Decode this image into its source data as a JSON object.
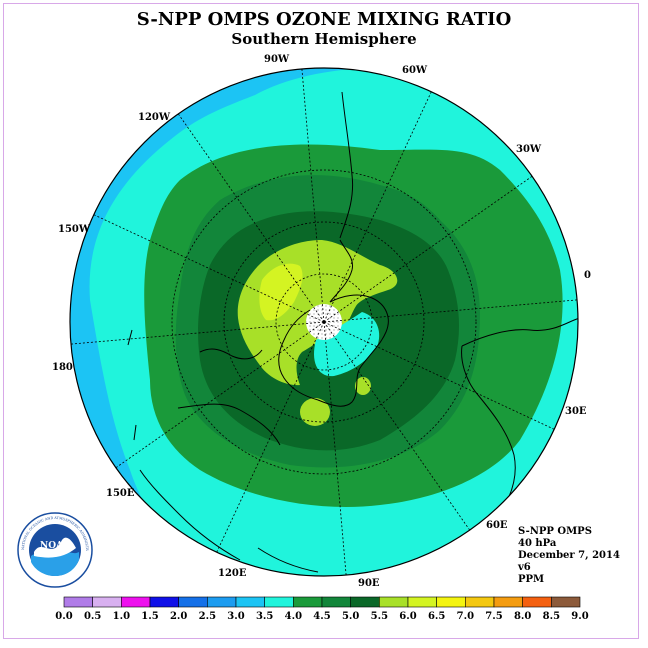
{
  "header": {
    "title": "S-NPP OMPS OZONE MIXING RATIO",
    "subtitle": "Southern Hemisphere"
  },
  "map": {
    "projection": "polar-stereographic-south",
    "longitude_labels": [
      "90W",
      "60W",
      "30W",
      "0",
      "30E",
      "60E",
      "90E",
      "120E",
      "150E",
      "180",
      "150W",
      "120W"
    ],
    "colors": {
      "band_3_0": "#1cc4f4",
      "band_3_5": "#20f4dc",
      "band_4_0": "#1a9a3a",
      "band_4_5": "#12863a",
      "band_5_0": "#0a6828",
      "band_5_5": "#a8e028",
      "band_6_0": "#d4f422",
      "pole": "#ffffff"
    }
  },
  "info": {
    "instrument": "S-NPP OMPS",
    "level": "40 hPa",
    "date": "December 7, 2014",
    "version": "v6",
    "units": "PPM"
  },
  "logo": {
    "text": "NOAA",
    "ring_text": "NATIONAL OCEANIC AND ATMOSPHERIC ADMINISTRATION · U.S. DEPARTMENT OF COMMERCE"
  },
  "colorbar": {
    "labels": [
      "0.0",
      "0.5",
      "1.0",
      "1.5",
      "2.0",
      "2.5",
      "3.0",
      "3.5",
      "4.0",
      "4.5",
      "5.0",
      "5.5",
      "6.0",
      "6.5",
      "7.0",
      "7.5",
      "8.0",
      "8.5",
      "9.0"
    ],
    "colors": [
      "#b07ce8",
      "#d8b0f0",
      "#ee10ee",
      "#1010e8",
      "#1470e8",
      "#1c9cf0",
      "#1cc4f4",
      "#20f4dc",
      "#1a9a3a",
      "#12863a",
      "#0a6828",
      "#a8e028",
      "#d4f422",
      "#f4f410",
      "#f4c810",
      "#f49c10",
      "#f46010",
      "#e81010",
      "#8c5a3a"
    ]
  }
}
